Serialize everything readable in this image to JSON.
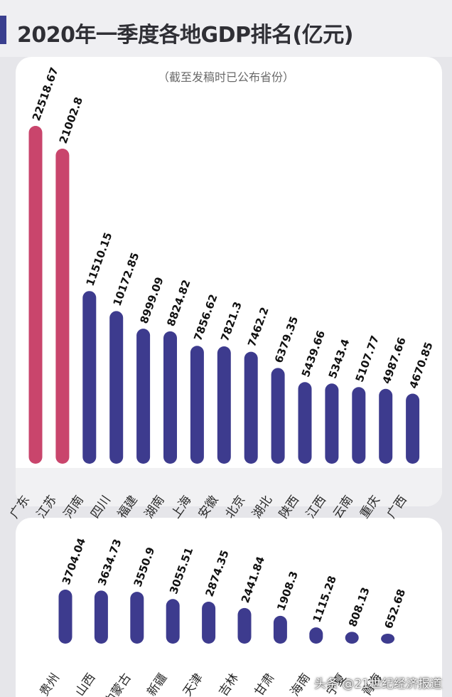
{
  "header": {
    "title": "2020年一季度各地GDP排名(亿元)",
    "subtitle": "（截至发稿时已公布省份）"
  },
  "footer": {
    "credit": "头条 @21世纪经济报道"
  },
  "colors": {
    "accent": "#3a3f8f",
    "highlight": "#c9456c",
    "bar": "#3d3b8e",
    "label": "#111111"
  },
  "chart_data": [
    {
      "type": "bar",
      "title": "2020年一季度各地GDP排名(亿元)",
      "subtitle": "（截至发稿时已公布省份）",
      "unit": "亿元",
      "categories": [
        "广东",
        "江苏",
        "河南",
        "四川",
        "福建",
        "湖南",
        "上海",
        "安徽",
        "北京",
        "湖北",
        "陕西",
        "江西",
        "云南",
        "重庆",
        "广西"
      ],
      "values": [
        22518.67,
        21002.8,
        11510.15,
        10172.85,
        8999.09,
        8824.82,
        7856.62,
        7821.3,
        7462.2,
        6379.35,
        5439.66,
        5343.4,
        5107.77,
        4987.66,
        4670.85
      ],
      "value_labels": [
        "22518.67",
        "21002.8",
        "11510.15",
        "10172.85",
        "8999.09",
        "8824.82",
        "7856.62",
        "7821.3",
        "7462.2",
        "6379.35",
        "5439.66",
        "5343.4",
        "5107.77",
        "4987.66",
        "4670.85"
      ],
      "highlighted": [
        "广东",
        "江苏"
      ]
    },
    {
      "type": "bar",
      "unit": "亿元",
      "categories": [
        "贵州",
        "山西",
        "内蒙古",
        "新疆",
        "天津",
        "吉林",
        "甘肃",
        "海南",
        "宁夏",
        "青海"
      ],
      "values": [
        3704.04,
        3634.73,
        3550.9,
        3055.51,
        2874.35,
        2441.84,
        1908.3,
        1115.28,
        808.13,
        652.68
      ],
      "value_labels": [
        "3704.04",
        "3634.73",
        "3550.9",
        "3055.51",
        "2874.35",
        "2441.84",
        "1908.3",
        "1115.28",
        "808.13",
        "652.68"
      ]
    }
  ]
}
